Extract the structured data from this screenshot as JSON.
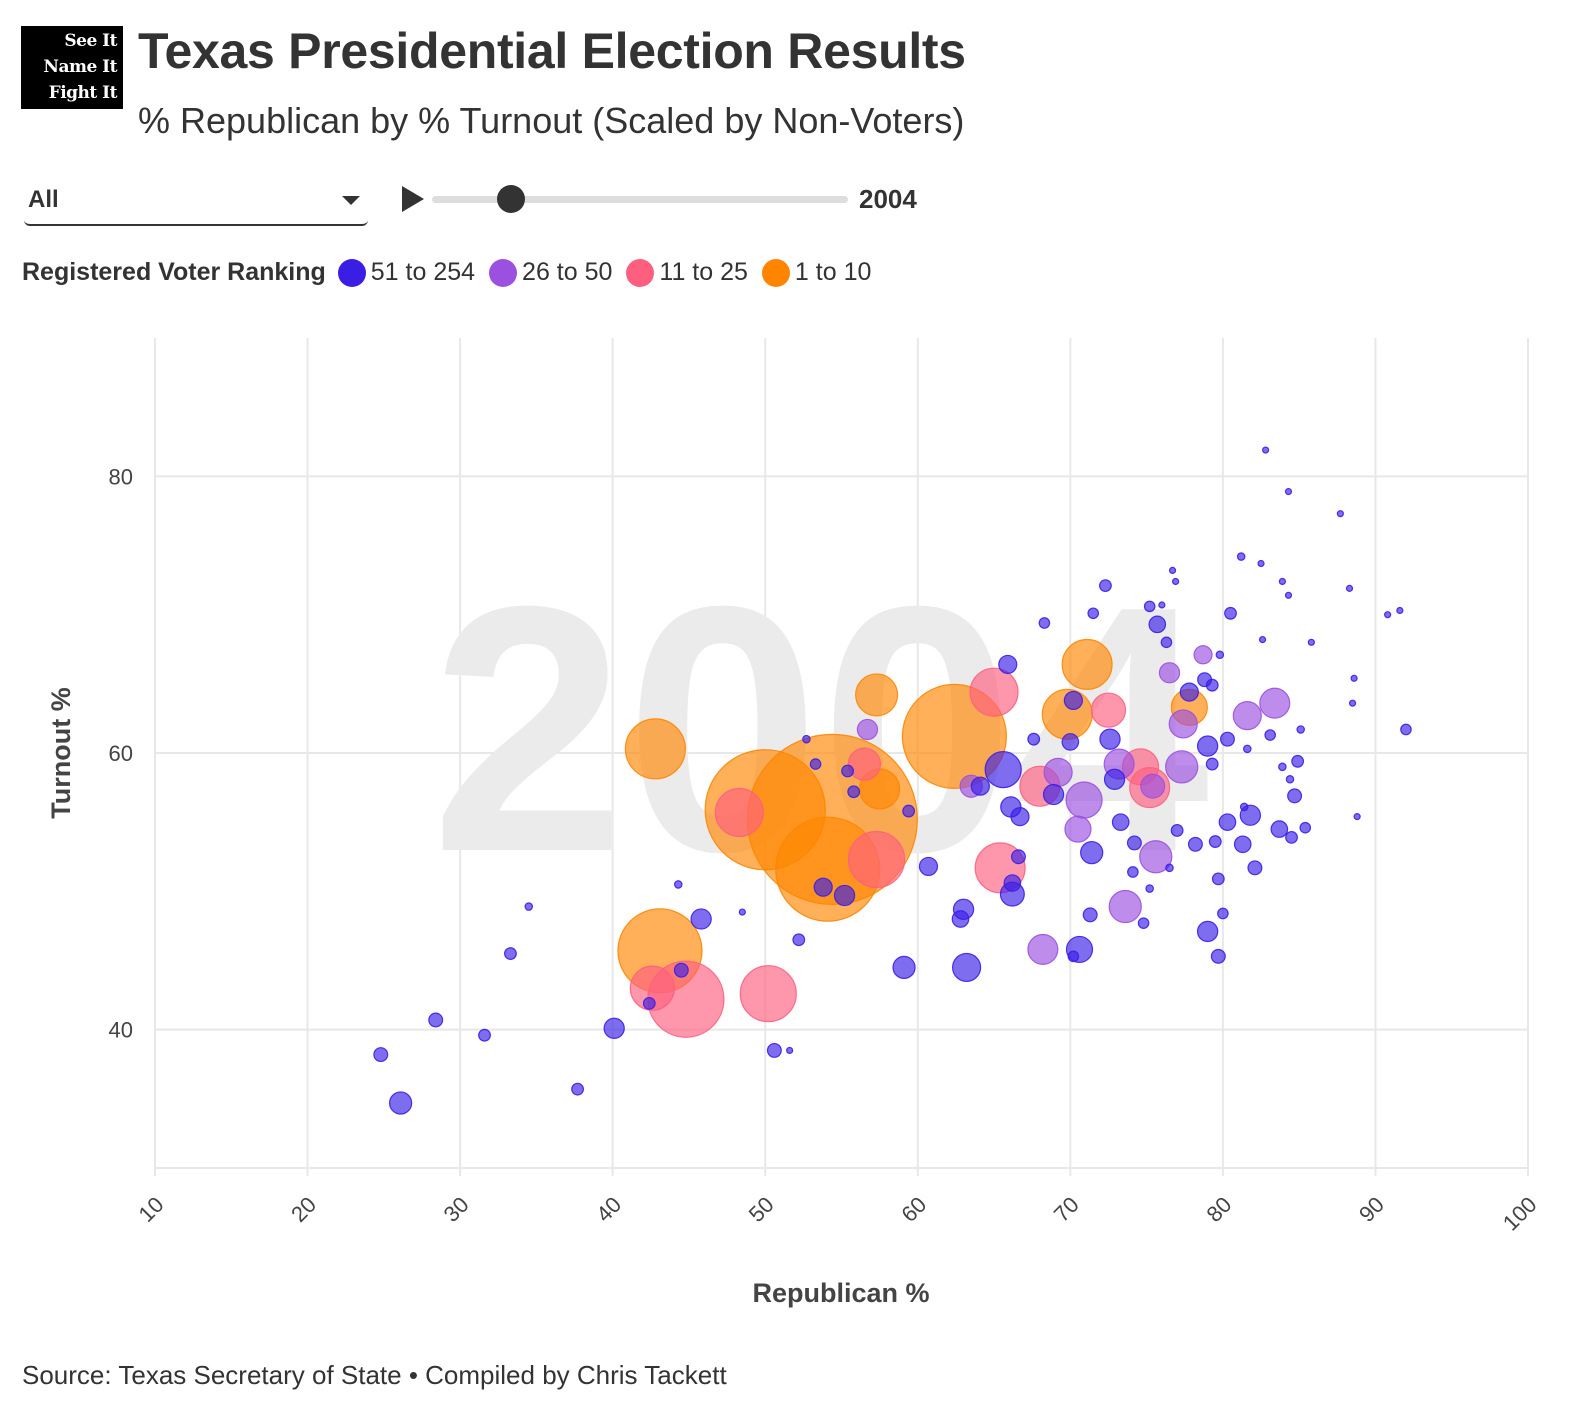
{
  "logo": {
    "lines": [
      "See It",
      "Name It",
      "Fight It"
    ]
  },
  "header": {
    "title": "Texas Presidential Election Results",
    "subtitle": "% Republican by % Turnout (Scaled by Non-Voters)"
  },
  "controls": {
    "dropdown_value": "All",
    "play_icon": "play-icon",
    "slider_year": "2004",
    "slider_fraction": 0.19
  },
  "colors": {
    "51 to 254": "#3b1ee6",
    "26 to 50": "#9b50e0",
    "11 to 25": "#ff5f7f",
    "1 to 10": "#ff8500"
  },
  "source": "Source: Texas Secretary of State • Compiled by Chris Tackett",
  "chart_data": {
    "type": "scatter",
    "title": "Texas Presidential Election Results",
    "xlabel": "Republican %",
    "ylabel": "Turnout %",
    "xlim": [
      10,
      100
    ],
    "ylim": [
      30,
      90
    ],
    "xticks": [
      "10",
      "20",
      "30",
      "40",
      "50",
      "60",
      "70",
      "80",
      "90",
      "100"
    ],
    "yticks": [
      "40",
      "60",
      "80"
    ],
    "ytick_values": [
      40,
      60,
      80
    ],
    "xtick_values": [
      10,
      20,
      30,
      40,
      50,
      60,
      70,
      80,
      90,
      100
    ],
    "watermark": "2004",
    "size_encoding": "non-voters (thousands, estimated)",
    "legend_title": "Registered Voter Ranking",
    "legend": [
      "51 to 254",
      "26 to 50",
      "11 to 25",
      "1 to 10"
    ],
    "series": [
      {
        "name": "51 to 254",
        "points": [
          [
            26.1,
            34.7,
            18
          ],
          [
            24.8,
            38.2,
            7
          ],
          [
            28.4,
            40.7,
            7
          ],
          [
            31.6,
            39.6,
            5
          ],
          [
            33.3,
            45.5,
            5
          ],
          [
            34.5,
            48.9,
            2
          ],
          [
            37.7,
            35.7,
            5
          ],
          [
            40.1,
            40.1,
            15
          ],
          [
            42.4,
            41.9,
            5
          ],
          [
            44.5,
            44.3,
            7
          ],
          [
            44.3,
            50.5,
            2
          ],
          [
            45.8,
            48.0,
            15
          ],
          [
            48.5,
            48.5,
            1
          ],
          [
            50.6,
            38.5,
            7
          ],
          [
            51.6,
            38.5,
            1
          ],
          [
            52.2,
            46.5,
            5
          ],
          [
            52.7,
            61.0,
            2
          ],
          [
            53.3,
            59.2,
            4
          ],
          [
            53.8,
            50.3,
            12
          ],
          [
            55.2,
            49.7,
            15
          ],
          [
            55.4,
            58.7,
            5
          ],
          [
            55.8,
            57.2,
            5
          ],
          [
            59.1,
            44.5,
            18
          ],
          [
            59.4,
            55.8,
            5
          ],
          [
            60.7,
            51.8,
            12
          ],
          [
            63.0,
            48.7,
            15
          ],
          [
            62.8,
            48.0,
            10
          ],
          [
            63.2,
            44.5,
            29
          ],
          [
            64.1,
            57.6,
            12
          ],
          [
            65.9,
            66.4,
            12
          ],
          [
            65.6,
            58.8,
            48
          ],
          [
            66.2,
            49.8,
            21
          ],
          [
            66.1,
            56.1,
            15
          ],
          [
            66.6,
            52.5,
            7
          ],
          [
            66.2,
            50.6,
            10
          ],
          [
            66.7,
            55.4,
            12
          ],
          [
            68.3,
            69.4,
            4
          ],
          [
            68.9,
            57.0,
            15
          ],
          [
            67.6,
            61.0,
            5
          ],
          [
            70.0,
            60.8,
            10
          ],
          [
            70.2,
            63.8,
            12
          ],
          [
            70.6,
            45.8,
            25
          ],
          [
            70.2,
            45.3,
            4
          ],
          [
            71.4,
            52.8,
            18
          ],
          [
            71.3,
            48.3,
            7
          ],
          [
            72.3,
            72.1,
            5
          ],
          [
            71.5,
            70.1,
            4
          ],
          [
            72.6,
            61.0,
            15
          ],
          [
            73.3,
            55.0,
            10
          ],
          [
            72.9,
            58.1,
            15
          ],
          [
            74.1,
            51.4,
            4
          ],
          [
            74.2,
            53.5,
            7
          ],
          [
            74.8,
            47.7,
            4
          ],
          [
            75.2,
            70.6,
            4
          ],
          [
            75.7,
            69.3,
            10
          ],
          [
            76.7,
            73.2,
            1
          ],
          [
            76.0,
            70.7,
            1
          ],
          [
            76.3,
            68.0,
            4
          ],
          [
            76.9,
            72.4,
            1
          ],
          [
            78.8,
            65.3,
            7
          ],
          [
            77.8,
            64.4,
            12
          ],
          [
            79.0,
            60.5,
            15
          ],
          [
            79.3,
            64.9,
            5
          ],
          [
            79.8,
            67.1,
            2
          ],
          [
            80.5,
            70.1,
            5
          ],
          [
            80.3,
            61.0,
            7
          ],
          [
            79.3,
            59.2,
            5
          ],
          [
            79.5,
            53.6,
            5
          ],
          [
            80.3,
            55.0,
            10
          ],
          [
            81.4,
            56.1,
            2
          ],
          [
            81.8,
            55.5,
            15
          ],
          [
            81.3,
            53.4,
            10
          ],
          [
            82.1,
            51.7,
            7
          ],
          [
            79.7,
            50.9,
            5
          ],
          [
            79.7,
            45.3,
            7
          ],
          [
            80.0,
            48.4,
            4
          ],
          [
            79.0,
            47.1,
            15
          ],
          [
            81.6,
            60.3,
            2
          ],
          [
            81.2,
            74.2,
            2
          ],
          [
            82.5,
            73.7,
            1
          ],
          [
            82.8,
            81.9,
            1
          ],
          [
            82.6,
            68.2,
            1
          ],
          [
            83.9,
            72.4,
            1
          ],
          [
            84.3,
            71.4,
            1
          ],
          [
            84.3,
            78.9,
            1
          ],
          [
            85.8,
            68.0,
            1
          ],
          [
            83.9,
            59.0,
            2
          ],
          [
            84.9,
            59.4,
            5
          ],
          [
            85.1,
            61.7,
            2
          ],
          [
            84.4,
            58.1,
            2
          ],
          [
            84.7,
            56.9,
            7
          ],
          [
            85.4,
            54.6,
            4
          ],
          [
            83.7,
            54.5,
            10
          ],
          [
            84.5,
            53.9,
            5
          ],
          [
            83.1,
            61.3,
            4
          ],
          [
            87.7,
            77.3,
            1
          ],
          [
            88.3,
            71.9,
            1
          ],
          [
            88.6,
            65.4,
            1
          ],
          [
            88.5,
            63.6,
            1
          ],
          [
            88.8,
            55.4,
            1
          ],
          [
            90.8,
            70.0,
            1
          ],
          [
            91.6,
            70.3,
            1
          ],
          [
            92.0,
            61.7,
            4
          ],
          [
            75.2,
            50.2,
            2
          ],
          [
            76.5,
            51.7,
            2
          ],
          [
            77.0,
            54.4,
            5
          ],
          [
            78.2,
            53.4,
            7
          ]
        ]
      },
      {
        "name": "26 to 50",
        "points": [
          [
            68.2,
            45.8,
            33
          ],
          [
            73.6,
            48.9,
            38
          ],
          [
            75.6,
            52.5,
            38
          ],
          [
            81.6,
            62.7,
            29
          ],
          [
            83.4,
            63.6,
            33
          ],
          [
            77.4,
            62.1,
            29
          ],
          [
            77.3,
            59.0,
            38
          ],
          [
            76.5,
            65.8,
            15
          ],
          [
            78.7,
            67.1,
            12
          ],
          [
            70.9,
            56.6,
            48
          ],
          [
            70.5,
            54.5,
            25
          ],
          [
            73.2,
            59.2,
            33
          ],
          [
            69.2,
            58.6,
            29
          ],
          [
            56.7,
            61.7,
            15
          ],
          [
            63.5,
            57.6,
            18
          ],
          [
            75.4,
            57.6,
            21
          ]
        ]
      },
      {
        "name": "11 to 25",
        "points": [
          [
            44.8,
            42.2,
            214
          ],
          [
            50.2,
            42.6,
            116
          ],
          [
            42.6,
            43.0,
            72
          ],
          [
            48.3,
            55.7,
            85
          ],
          [
            57.3,
            52.3,
            116
          ],
          [
            65.4,
            51.7,
            92
          ],
          [
            65.0,
            64.4,
            85
          ],
          [
            56.5,
            59.2,
            38
          ],
          [
            68.0,
            57.6,
            59
          ],
          [
            75.2,
            57.5,
            59
          ],
          [
            72.5,
            63.1,
            43
          ],
          [
            74.6,
            59.0,
            48
          ]
        ]
      },
      {
        "name": "1 to 10",
        "points": [
          [
            54.4,
            55.2,
            1069
          ],
          [
            50.0,
            55.9,
            533
          ],
          [
            54.1,
            51.6,
            400
          ],
          [
            62.4,
            61.2,
            400
          ],
          [
            42.8,
            60.3,
            133
          ],
          [
            43.1,
            45.7,
            261
          ],
          [
            57.3,
            64.2,
            65
          ],
          [
            71.1,
            66.4,
            92
          ],
          [
            69.8,
            62.8,
            92
          ],
          [
            77.8,
            63.3,
            48
          ],
          [
            57.5,
            57.4,
            59
          ]
        ]
      }
    ]
  }
}
